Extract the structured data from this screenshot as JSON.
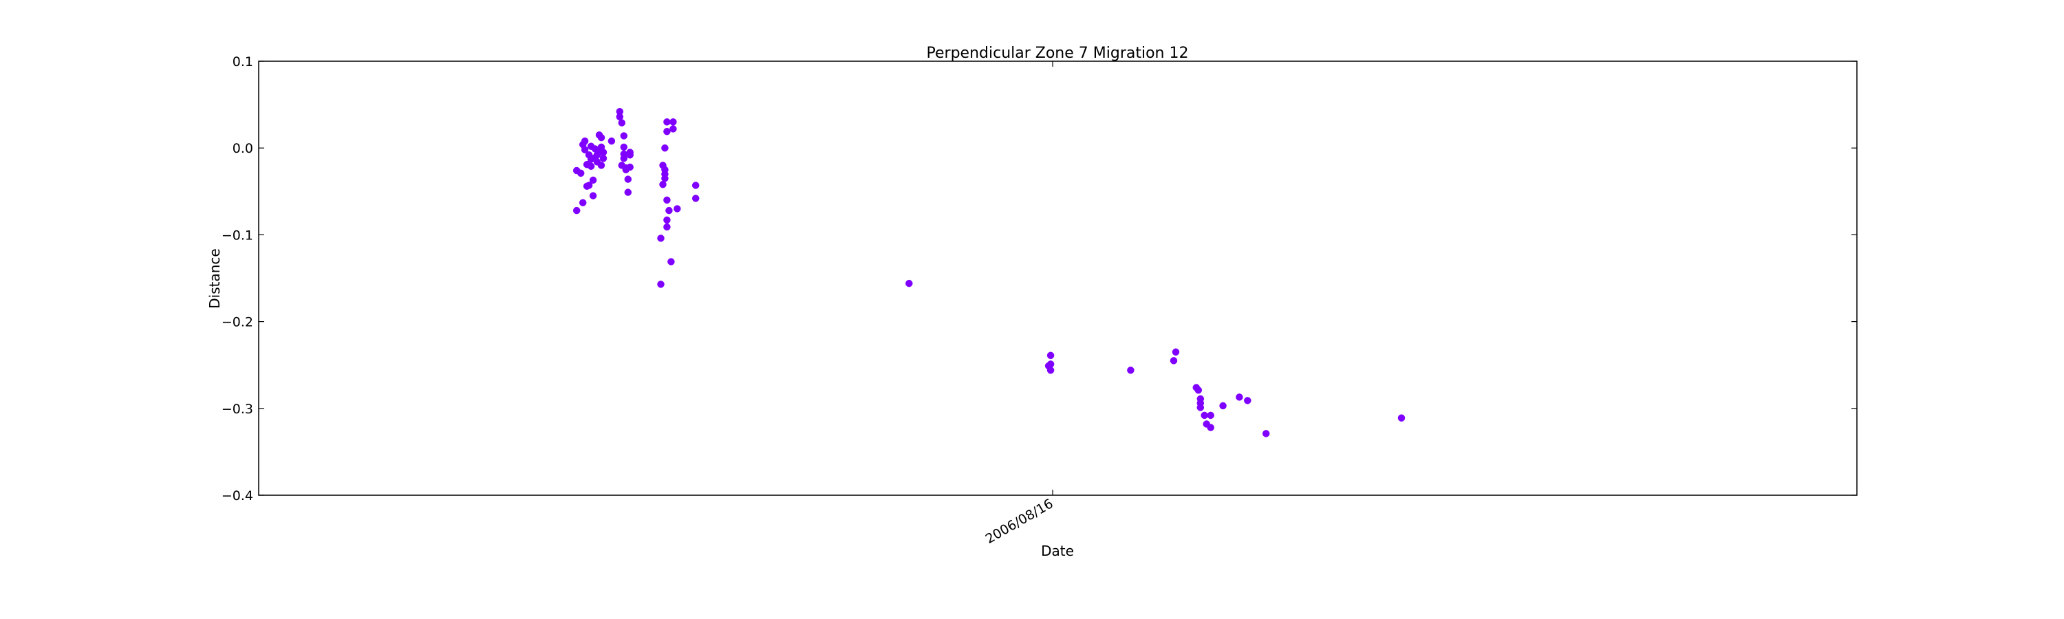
{
  "chart_data": {
    "type": "scatter",
    "title": "Perpendicular Zone 7 Migration 12",
    "xlabel": "Date",
    "ylabel": "Distance",
    "ylim": [
      -0.4,
      0.1
    ],
    "xlim": [
      "2005-07-25",
      "2007-09-12"
    ],
    "yticks": [
      0.1,
      0.0,
      -0.1,
      -0.2,
      -0.3,
      -0.4
    ],
    "ytick_labels": [
      "0.1",
      "0.0",
      "−0.1",
      "−0.2",
      "−0.3",
      "−0.4"
    ],
    "xticks": [
      "2006-08-16"
    ],
    "xtick_labels": [
      "2006/08/16"
    ],
    "grid": false,
    "legend": "none",
    "marker_color": "#7f00ff",
    "series": [
      {
        "points": [
          [
            "2005-12-27",
            -0.072
          ],
          [
            "2005-12-27",
            -0.026
          ],
          [
            "2005-12-29",
            -0.029
          ],
          [
            "2005-12-30",
            -0.063
          ],
          [
            "2005-12-30",
            0.004
          ],
          [
            "2005-12-31",
            0.008
          ],
          [
            "2005-12-31",
            -0.002
          ],
          [
            "2006-01-01",
            -0.019
          ],
          [
            "2006-01-01",
            -0.044
          ],
          [
            "2006-01-02",
            -0.043
          ],
          [
            "2006-01-02",
            -0.008
          ],
          [
            "2006-01-03",
            0.002
          ],
          [
            "2006-01-03",
            -0.021
          ],
          [
            "2006-01-03",
            -0.013
          ],
          [
            "2006-01-04",
            -0.037
          ],
          [
            "2006-01-04",
            -0.055
          ],
          [
            "2006-01-05",
            -0.011
          ],
          [
            "2006-01-05",
            -0.001
          ],
          [
            "2006-01-06",
            -0.016
          ],
          [
            "2006-01-06",
            -0.008
          ],
          [
            "2006-01-07",
            0.015
          ],
          [
            "2006-01-07",
            -0.005
          ],
          [
            "2006-01-08",
            -0.02
          ],
          [
            "2006-01-08",
            0.001
          ],
          [
            "2006-01-08",
            0.012
          ],
          [
            "2006-01-09",
            -0.005
          ],
          [
            "2006-01-09",
            -0.012
          ],
          [
            "2006-01-13",
            0.008
          ],
          [
            "2006-01-17",
            0.042
          ],
          [
            "2006-01-17",
            0.036
          ],
          [
            "2006-01-18",
            0.029
          ],
          [
            "2006-01-18",
            -0.02
          ],
          [
            "2006-01-19",
            0.001
          ],
          [
            "2006-01-19",
            -0.007
          ],
          [
            "2006-01-19",
            0.014
          ],
          [
            "2006-01-19",
            -0.012
          ],
          [
            "2006-01-20",
            -0.023
          ],
          [
            "2006-01-20",
            -0.025
          ],
          [
            "2006-01-21",
            -0.051
          ],
          [
            "2006-01-21",
            -0.036
          ],
          [
            "2006-01-22",
            -0.022
          ],
          [
            "2006-01-22",
            -0.005
          ],
          [
            "2006-01-22",
            -0.008
          ],
          [
            "2006-02-06",
            -0.104
          ],
          [
            "2006-02-06",
            -0.157
          ],
          [
            "2006-02-07",
            -0.042
          ],
          [
            "2006-02-07",
            -0.02
          ],
          [
            "2006-02-08",
            0.0
          ],
          [
            "2006-02-08",
            -0.025
          ],
          [
            "2006-02-08",
            -0.035
          ],
          [
            "2006-02-08",
            -0.03
          ],
          [
            "2006-02-09",
            0.019
          ],
          [
            "2006-02-09",
            0.03
          ],
          [
            "2006-02-09",
            -0.06
          ],
          [
            "2006-02-09",
            -0.083
          ],
          [
            "2006-02-09",
            -0.091
          ],
          [
            "2006-02-10",
            -0.072
          ],
          [
            "2006-02-11",
            -0.131
          ],
          [
            "2006-02-12",
            0.03
          ],
          [
            "2006-02-12",
            0.022
          ],
          [
            "2006-02-14",
            -0.07
          ],
          [
            "2006-02-23",
            -0.043
          ],
          [
            "2006-02-23",
            -0.058
          ],
          [
            "2006-06-07",
            -0.156
          ],
          [
            "2006-08-14",
            -0.251
          ],
          [
            "2006-08-15",
            -0.239
          ],
          [
            "2006-08-15",
            -0.256
          ],
          [
            "2006-08-15",
            -0.249
          ],
          [
            "2006-09-23",
            -0.256
          ],
          [
            "2006-10-14",
            -0.245
          ],
          [
            "2006-10-15",
            -0.235
          ],
          [
            "2006-10-25",
            -0.276
          ],
          [
            "2006-10-26",
            -0.279
          ],
          [
            "2006-10-27",
            -0.289
          ],
          [
            "2006-10-27",
            -0.294
          ],
          [
            "2006-10-27",
            -0.299
          ],
          [
            "2006-10-29",
            -0.308
          ],
          [
            "2006-10-30",
            -0.318
          ],
          [
            "2006-11-01",
            -0.322
          ],
          [
            "2006-11-01",
            -0.308
          ],
          [
            "2006-11-07",
            -0.297
          ],
          [
            "2006-11-15",
            -0.287
          ],
          [
            "2006-11-19",
            -0.291
          ],
          [
            "2006-11-28",
            -0.329
          ],
          [
            "2007-02-02",
            -0.311
          ]
        ]
      }
    ]
  }
}
